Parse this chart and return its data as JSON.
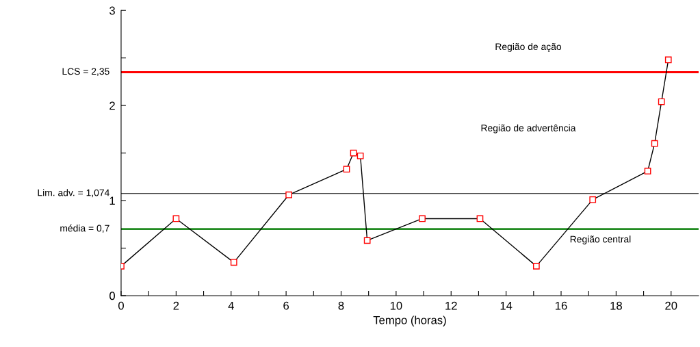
{
  "chart_data": {
    "type": "line",
    "xlabel": "Tempo (horas)",
    "x": [
      0,
      2,
      4.1,
      6.1,
      8.2,
      8.45,
      8.7,
      8.95,
      10.95,
      13.05,
      15.1,
      17.15,
      19.15,
      19.4,
      19.65,
      19.9
    ],
    "series": [
      {
        "color": "#000000",
        "values": [
          0.31,
          0.81,
          0.35,
          1.06,
          1.33,
          1.5,
          1.47,
          0.58,
          0.81,
          0.81,
          0.31,
          1.01,
          1.31,
          1.6,
          2.04,
          2.48
        ]
      }
    ],
    "marker": "square",
    "line_style": "solid",
    "grid": false,
    "xlim": [
      0,
      21
    ],
    "ylim": [
      0,
      3
    ],
    "xticks": [
      0,
      {
        "value": 1,
        "label": null
      },
      2,
      {
        "value": 3,
        "label": null
      },
      4,
      {
        "value": 5,
        "label": null
      },
      6,
      {
        "value": 7,
        "label": null
      },
      8,
      {
        "value": 9,
        "label": null
      },
      10,
      {
        "value": 11,
        "label": null
      },
      12,
      {
        "value": 13,
        "label": null
      },
      14,
      {
        "value": 15,
        "label": null
      },
      16,
      {
        "value": 17,
        "label": null
      },
      18,
      {
        "value": 19,
        "label": null
      },
      20
    ],
    "yticks": [
      0,
      {
        "value": 0.5,
        "label": null
      },
      1,
      {
        "value": 1.5,
        "label": null
      },
      2,
      {
        "value": 2.5,
        "label": null
      },
      3
    ],
    "ref_lines": [
      {
        "axis": "y",
        "value": 2.35,
        "label": "LCS = 2,35",
        "color": "#ff0000"
      },
      {
        "axis": "y",
        "value": 1.074,
        "label": "Lim. adv. = 1,074",
        "color": "#000000"
      },
      {
        "axis": "y",
        "value": 0.7,
        "label": "média = 0,7",
        "color": "#228b22"
      }
    ],
    "annotations": [
      "Região de ação",
      "Região de advertência",
      "Região central"
    ]
  }
}
